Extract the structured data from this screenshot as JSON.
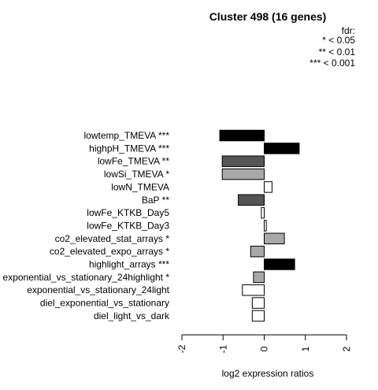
{
  "chart_data": {
    "type": "bar",
    "orientation": "horizontal",
    "title": "Cluster 498 (16 genes)",
    "xlabel": "log2 expression ratios",
    "ylabel": "",
    "xlim": [
      -2,
      2
    ],
    "xticks": [
      "-2",
      "-1",
      "0",
      "1",
      "2"
    ],
    "legend": {
      "title": "fdr:",
      "entries": [
        "* < 0.05",
        "** < 0.01",
        "*** < 0.001"
      ],
      "placement": "top-right"
    },
    "bars": [
      {
        "label": "lowtemp_TMEVA ***",
        "value": -1.08,
        "fill": "#000000"
      },
      {
        "label": "highpH_TMEVA ***",
        "value": 0.85,
        "fill": "#000000"
      },
      {
        "label": "lowFe_TMEVA **",
        "value": -1.02,
        "fill": "#555555"
      },
      {
        "label": "lowSi_TMEVA *",
        "value": -1.02,
        "fill": "#a9a9a9"
      },
      {
        "label": "lowN_TMEVA",
        "value": 0.19,
        "fill": "#ffffff"
      },
      {
        "label": "BaP **",
        "value": -0.63,
        "fill": "#555555"
      },
      {
        "label": "lowFe_KTKB_Day5",
        "value": -0.07,
        "fill": "#ffffff"
      },
      {
        "label": "lowFe_KTKB_Day3",
        "value": 0.05,
        "fill": "#ffffff"
      },
      {
        "label": "co2_elevated_stat_arrays *",
        "value": 0.49,
        "fill": "#a9a9a9"
      },
      {
        "label": "co2_elevated_expo_arrays *",
        "value": -0.33,
        "fill": "#a9a9a9"
      },
      {
        "label": "highlight_arrays ***",
        "value": 0.74,
        "fill": "#000000"
      },
      {
        "label": "exponential_vs_stationary_24highlight *",
        "value": -0.26,
        "fill": "#a9a9a9"
      },
      {
        "label": "exponential_vs_stationary_24light",
        "value": -0.53,
        "fill": "#ffffff"
      },
      {
        "label": "diel_exponential_vs_stationary",
        "value": -0.29,
        "fill": "#ffffff"
      },
      {
        "label": "diel_light_vs_dark",
        "value": -0.29,
        "fill": "#ffffff"
      }
    ]
  }
}
